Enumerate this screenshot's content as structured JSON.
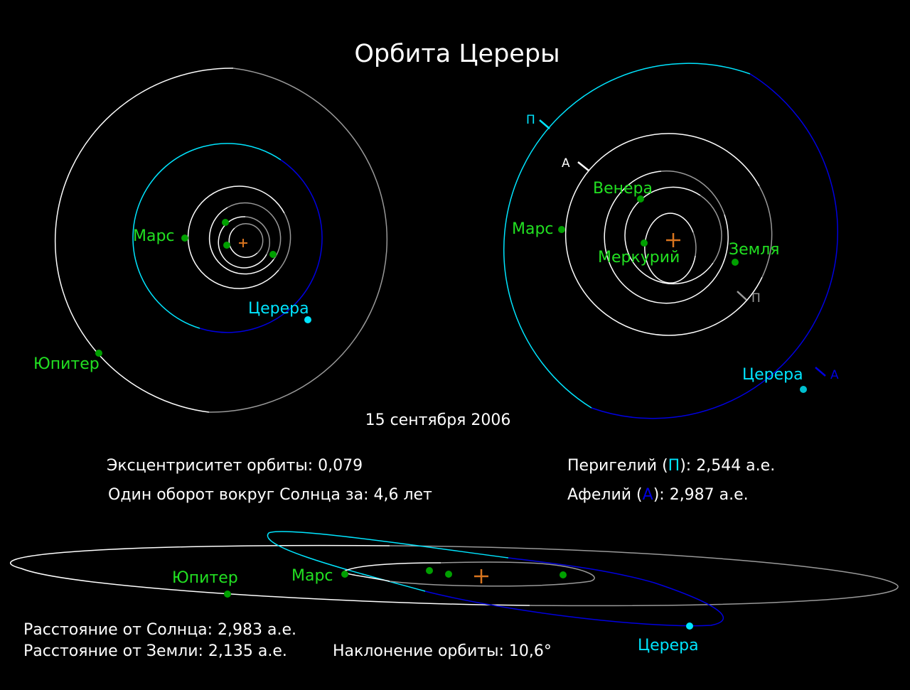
{
  "title": "Орбита Цереры",
  "date": "15 сентября 2006",
  "colors": {
    "background": "#000000",
    "planet": "#00a000",
    "planet_label": "#22e022",
    "ceres": "#00e5ff",
    "ceres_far": "#0000e0",
    "sun": "#d8741e",
    "orbit_near": "#ffffff",
    "orbit_far": "#999999"
  },
  "left_view": {
    "labels": {
      "mars": "Марс",
      "jupiter": "Юпитер",
      "ceres": "Церера"
    }
  },
  "right_view": {
    "labels": {
      "venus": "Венера",
      "mars": "Марс",
      "mercury": "Меркурий",
      "earth": "Земля",
      "ceres": "Церера",
      "perihelion_mark": "П",
      "aphelion_mark": "А"
    }
  },
  "info": {
    "eccentricity": "Эксцентриситет орбиты: 0,079",
    "period": "Один оборот вокруг Солнца за: 4,6 лет",
    "perihelion_prefix": "Перигелий (",
    "perihelion_symbol": "П",
    "perihelion_suffix": "): 2,544 а.е.",
    "aphelion_prefix": "Афелий (",
    "aphelion_symbol": "А",
    "aphelion_suffix": "): 2,987 а.е."
  },
  "bottom_view": {
    "labels": {
      "jupiter": "Юпитер",
      "mars": "Марс",
      "ceres": "Церера"
    }
  },
  "footer": {
    "distance_sun": "Расстояние от Солнца: 2,983 а.е.",
    "distance_earth": "Расстояние от Земли: 2,135 а.е.",
    "inclination": "Наклонение орбиты: 10,6°"
  }
}
